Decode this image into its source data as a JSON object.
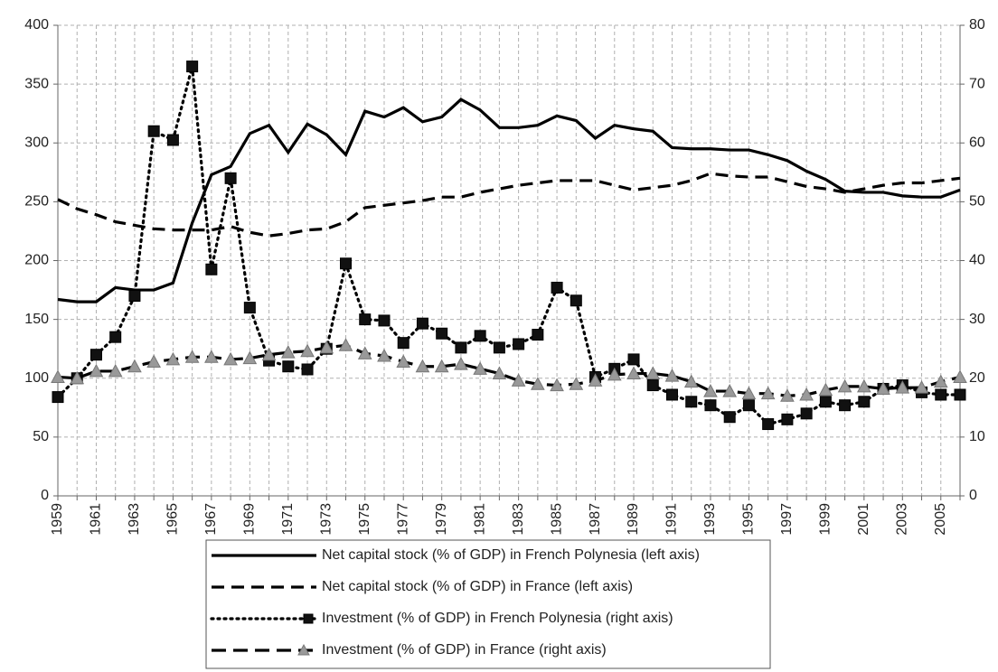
{
  "chart_data": {
    "type": "line",
    "categories": [
      "1959",
      null,
      "1961",
      null,
      "1963",
      null,
      "1965",
      null,
      "1967",
      null,
      "1969",
      null,
      "1971",
      null,
      "1973",
      null,
      "1975",
      null,
      "1977",
      null,
      "1979",
      null,
      "1981",
      null,
      "1983",
      null,
      "1985",
      null,
      "1987",
      null,
      "1989",
      null,
      "1991",
      null,
      "1993",
      null,
      "1995",
      null,
      "1997",
      null,
      "1999",
      null,
      "2001",
      null,
      "2003",
      null,
      "2005",
      null
    ],
    "ylim": [
      0,
      400
    ],
    "yticks": [
      0,
      50,
      100,
      150,
      200,
      250,
      300,
      350,
      400
    ],
    "y2lim": [
      0,
      80
    ],
    "y2ticks": [
      0,
      10,
      20,
      30,
      40,
      50,
      60,
      70,
      80
    ],
    "grid": true,
    "legend": "bottom",
    "series": [
      {
        "name": "Net capital stock (% of GDP) in French Polynesia (left axis)",
        "color": "#000000",
        "style": "solid",
        "marker": "none",
        "values": [
          167,
          165,
          165,
          177,
          175,
          175,
          181,
          232,
          273,
          280,
          308,
          315,
          292,
          316,
          307,
          290,
          327,
          322,
          330,
          318,
          322,
          337,
          328,
          313,
          313,
          315,
          323,
          319,
          304,
          315,
          312,
          310,
          296,
          295,
          295,
          294,
          294,
          290,
          285,
          276,
          269,
          259,
          258,
          258,
          255,
          254,
          254,
          260
        ]
      },
      {
        "name": "Net capital stock (% of GDP) in France (left axis)",
        "color": "#000000",
        "style": "dashed",
        "marker": "none",
        "values": [
          252,
          244,
          239,
          233,
          230,
          227,
          226,
          226,
          226,
          229,
          224,
          221,
          223,
          226,
          227,
          233,
          245,
          247,
          249,
          251,
          254,
          254,
          258,
          261,
          264,
          266,
          268,
          268,
          268,
          264,
          260,
          262,
          264,
          268,
          274,
          272,
          271,
          271,
          267,
          263,
          261,
          258,
          261,
          264,
          266,
          266,
          268,
          270
        ]
      },
      {
        "name": "Investment (% of GDP) in French Polynesia (right axis)",
        "color": "#000000",
        "style": "dotted",
        "marker": "square",
        "marker_color": "#111111",
        "axis": "y2",
        "values": [
          16.8,
          20,
          24,
          27,
          34,
          62,
          60.5,
          73,
          38.5,
          54,
          32,
          23,
          22,
          21.5,
          25,
          39.5,
          30,
          29.8,
          26,
          29.3,
          27.6,
          25.2,
          27.2,
          25.2,
          25.8,
          27.4,
          35.4,
          33.2,
          20.2,
          21.6,
          23.2,
          18.8,
          17.2,
          16,
          15.4,
          13.4,
          15.4,
          12.2,
          13,
          14,
          16,
          15.4,
          16,
          18.2,
          18.8,
          17.6,
          17.2,
          17.2
        ]
      },
      {
        "name": "Investment (% of GDP) in France (right axis)",
        "color": "#000000",
        "style": "dashdot",
        "marker": "triangle",
        "marker_color": "#999999",
        "axis": "y2",
        "values": [
          20.2,
          20,
          21.2,
          21.2,
          22,
          22.8,
          23.2,
          23.6,
          23.6,
          23.2,
          23.4,
          24,
          24.4,
          24.6,
          25.2,
          25.6,
          24.2,
          23.8,
          22.8,
          22,
          22,
          22.4,
          21.6,
          20.8,
          19.6,
          19,
          18.8,
          19,
          19.6,
          20.6,
          20.8,
          20.8,
          20.4,
          19.4,
          17.8,
          17.8,
          17.4,
          17.4,
          17,
          17.2,
          18,
          18.6,
          18.6,
          18.2,
          18.4,
          18.4,
          19.4,
          20.2
        ]
      }
    ]
  }
}
